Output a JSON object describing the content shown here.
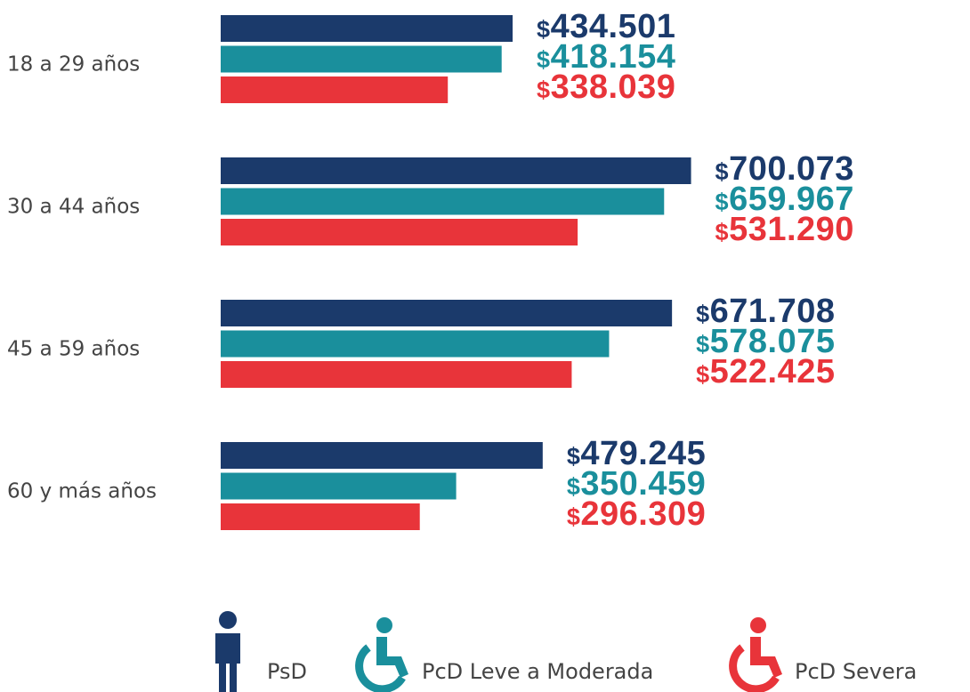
{
  "chart_data": {
    "type": "bar",
    "orientation": "horizontal",
    "categories": [
      "18 a 29 años",
      "30 a 44 años",
      "45 a 59 años",
      "60 y más años"
    ],
    "series": [
      {
        "name": "PsD",
        "color": "#1b3a6b",
        "values": [
          434501,
          700073,
          671708,
          479245
        ],
        "value_labels": [
          "$434.501",
          "$700.073",
          "$671.708",
          "$479.245"
        ]
      },
      {
        "name": "PcD Leve a Moderada",
        "color": "#1a8f9c",
        "values": [
          418154,
          659967,
          578075,
          350459
        ],
        "value_labels": [
          "$418.154",
          "$659.967",
          "$578.075",
          "$350.459"
        ]
      },
      {
        "name": "PcD Severa",
        "color": "#e8343a",
        "values": [
          338039,
          531290,
          522425,
          296309
        ],
        "value_labels": [
          "$338.039",
          "$531.290",
          "$522.425",
          "$296.309"
        ]
      }
    ]
  }
}
